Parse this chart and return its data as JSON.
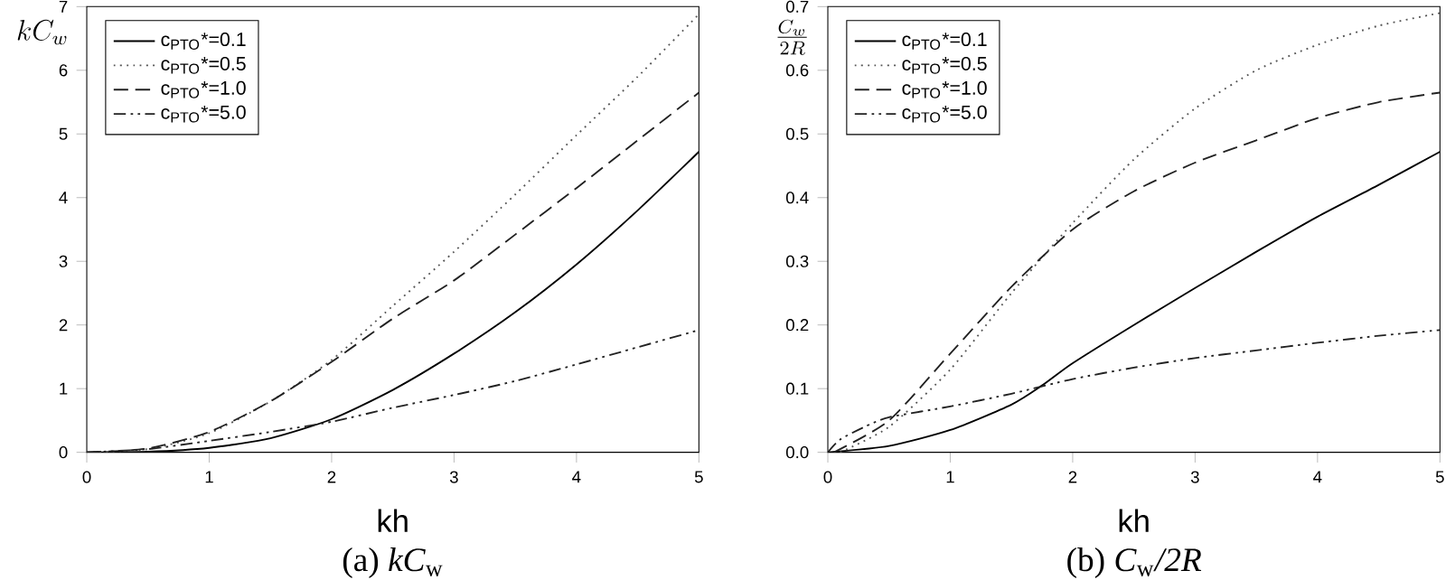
{
  "chart_data": [
    {
      "type": "line",
      "xlabel": "kh",
      "ylabel": "kC_w",
      "annotations": [
        "(a)  *kC*$_{w}$"
      ],
      "legend": "top left",
      "xlim": [
        0,
        5
      ],
      "ylim": [
        0,
        7
      ],
      "xticks": [
        0,
        1,
        2,
        3,
        4,
        5
      ],
      "yticks": [
        0,
        1,
        2,
        3,
        4,
        5,
        6,
        7
      ],
      "x": [
        0,
        0.5,
        1,
        1.5,
        2,
        2.5,
        3,
        3.5,
        4,
        4.5,
        5
      ],
      "series": [
        {
          "name": "c$_{PTO}$*=0.1",
          "color": "#000000",
          "line_style": "solid",
          "values": [
            0,
            0.01,
            0.07,
            0.22,
            0.52,
            0.98,
            1.55,
            2.2,
            2.95,
            3.8,
            4.72
          ]
        },
        {
          "name": "c$_{PTO}$*=0.5",
          "color": "#555555",
          "line_style": "dotted",
          "values": [
            0,
            0.05,
            0.3,
            0.8,
            1.45,
            2.3,
            3.15,
            4.05,
            4.98,
            5.9,
            6.88
          ]
        },
        {
          "name": "c$_{PTO}$*=1.0",
          "color": "#222222",
          "line_style": "dashed",
          "values": [
            0,
            0.06,
            0.32,
            0.8,
            1.42,
            2.1,
            2.7,
            3.42,
            4.15,
            4.9,
            5.65
          ]
        },
        {
          "name": "c$_{PTO}$*=5.0",
          "color": "#222222",
          "line_style": "dashdotted",
          "values": [
            0,
            0.05,
            0.18,
            0.32,
            0.48,
            0.7,
            0.9,
            1.12,
            1.38,
            1.65,
            1.92
          ]
        }
      ]
    },
    {
      "type": "line",
      "xlabel": "kh",
      "ylabel": "\\frac{C_w}{2R}",
      "annotations": [
        "(b)  *C*$_{w}$*/2R*"
      ],
      "legend": "top left",
      "xlim": [
        0,
        5
      ],
      "ylim": [
        0,
        0.7
      ],
      "xticks": [
        0,
        1,
        2,
        3,
        4,
        5
      ],
      "yticks": [
        {
          "value": 0,
          "label": "0.0"
        },
        0.1,
        0.2,
        0.3,
        0.4,
        0.5,
        0.6,
        0.7
      ],
      "series": [
        {
          "name": "c$_{PTO}$*=0.1",
          "color": "#000000",
          "line_style": "solid",
          "x": [
            0,
            0.5,
            1,
            1.5,
            1.75,
            2,
            2.5,
            3,
            3.5,
            4,
            4.5,
            5
          ],
          "values": [
            0,
            0.01,
            0.035,
            0.075,
            0.105,
            0.14,
            0.2,
            0.258,
            0.315,
            0.37,
            0.42,
            0.472
          ]
        },
        {
          "name": "c$_{PTO}$*=0.5",
          "color": "#555555",
          "line_style": "dotted",
          "x": [
            0.1,
            0.5,
            1,
            1.5,
            2,
            2.5,
            3,
            3.5,
            4,
            4.5,
            5
          ],
          "values": [
            0,
            0.04,
            0.13,
            0.25,
            0.36,
            0.46,
            0.54,
            0.6,
            0.64,
            0.67,
            0.69
          ]
        },
        {
          "name": "c$_{PTO}$*=1.0",
          "color": "#222222",
          "line_style": "dashed",
          "x": [
            0.05,
            0.5,
            1,
            1.5,
            2,
            2.5,
            3,
            3.5,
            4,
            4.5,
            5
          ],
          "values": [
            0,
            0.05,
            0.155,
            0.26,
            0.35,
            0.41,
            0.455,
            0.49,
            0.525,
            0.55,
            0.565
          ]
        },
        {
          "name": "c$_{PTO}$*=5.0",
          "color": "#222222",
          "line_style": "dashdotted",
          "x": [
            0,
            0.1,
            0.3,
            0.5,
            1,
            1.5,
            2,
            2.5,
            3,
            3.5,
            4,
            4.5,
            5
          ],
          "values": [
            0,
            0.02,
            0.04,
            0.055,
            0.072,
            0.092,
            0.115,
            0.133,
            0.148,
            0.16,
            0.172,
            0.183,
            0.192
          ]
        }
      ]
    }
  ]
}
